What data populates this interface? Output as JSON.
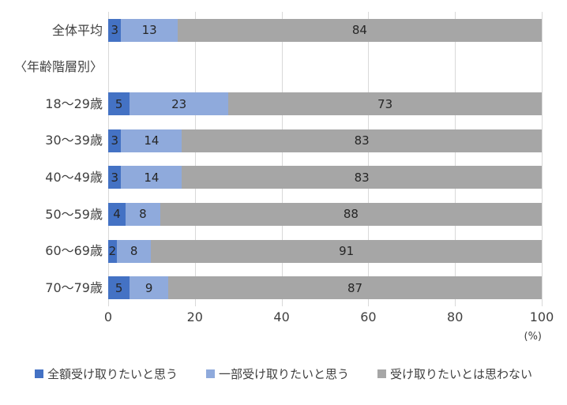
{
  "chart_data": {
    "type": "bar",
    "orientation": "horizontal-stacked",
    "title": "",
    "categories": [
      "全体平均",
      "18〜29歳",
      "30〜39歳",
      "40〜49歳",
      "50〜59歳",
      "60〜69歳",
      "70〜79歳"
    ],
    "group_label": "〈年齢階層別〉",
    "group_label_insert_after_index": 0,
    "series": [
      {
        "name": "全額受け取りたいと思う",
        "color": "#4472c4",
        "values": [
          3,
          5,
          3,
          3,
          4,
          2,
          5
        ]
      },
      {
        "name": "一部受け取りたいと思う",
        "color": "#8faadc",
        "values": [
          13,
          23,
          14,
          14,
          8,
          8,
          9
        ]
      },
      {
        "name": "受け取りたいとは思わない",
        "color": "#a6a6a6",
        "values": [
          84,
          73,
          83,
          83,
          88,
          91,
          87
        ]
      }
    ],
    "xlim": [
      0,
      100
    ],
    "xticks": [
      0,
      20,
      40,
      60,
      80,
      100
    ],
    "unit_label": "(%)",
    "grid": true,
    "gridline_color": "#d9d9d9",
    "legend_position": "bottom",
    "label_color": "#404040",
    "value_label_color": "#262626"
  }
}
